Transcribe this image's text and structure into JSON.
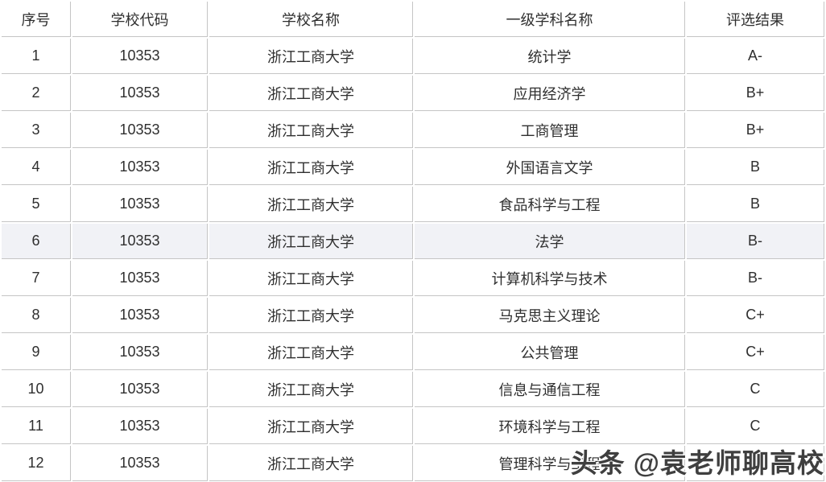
{
  "table": {
    "columns": [
      "序号",
      "学校代码",
      "学校名称",
      "一级学科名称",
      "评选结果"
    ],
    "column_keys": [
      "no",
      "code",
      "school",
      "discipline",
      "result"
    ],
    "highlighted_row_no": "6",
    "rows": [
      {
        "no": "1",
        "code": "10353",
        "school": "浙江工商大学",
        "discipline": "统计学",
        "result": "A-"
      },
      {
        "no": "2",
        "code": "10353",
        "school": "浙江工商大学",
        "discipline": "应用经济学",
        "result": "B+"
      },
      {
        "no": "3",
        "code": "10353",
        "school": "浙江工商大学",
        "discipline": "工商管理",
        "result": "B+"
      },
      {
        "no": "4",
        "code": "10353",
        "school": "浙江工商大学",
        "discipline": "外国语言文学",
        "result": "B"
      },
      {
        "no": "5",
        "code": "10353",
        "school": "浙江工商大学",
        "discipline": "食品科学与工程",
        "result": "B"
      },
      {
        "no": "6",
        "code": "10353",
        "school": "浙江工商大学",
        "discipline": "法学",
        "result": "B-"
      },
      {
        "no": "7",
        "code": "10353",
        "school": "浙江工商大学",
        "discipline": "计算机科学与技术",
        "result": "B-"
      },
      {
        "no": "8",
        "code": "10353",
        "school": "浙江工商大学",
        "discipline": "马克思主义理论",
        "result": "C+"
      },
      {
        "no": "9",
        "code": "10353",
        "school": "浙江工商大学",
        "discipline": "公共管理",
        "result": "C+"
      },
      {
        "no": "10",
        "code": "10353",
        "school": "浙江工商大学",
        "discipline": "信息与通信工程",
        "result": "C"
      },
      {
        "no": "11",
        "code": "10353",
        "school": "浙江工商大学",
        "discipline": "环境科学与工程",
        "result": "C"
      },
      {
        "no": "12",
        "code": "10353",
        "school": "浙江工商大学",
        "discipline": "管理科学与工程",
        "result": ""
      }
    ]
  },
  "watermark": {
    "text": "头条 @袁老师聊高校"
  },
  "colors": {
    "border": "#c5c5c5",
    "text": "#2f2f2f",
    "row_highlight": "#f1f2f6",
    "watermark_text": "#3f3f3f",
    "background": "#ffffff"
  }
}
